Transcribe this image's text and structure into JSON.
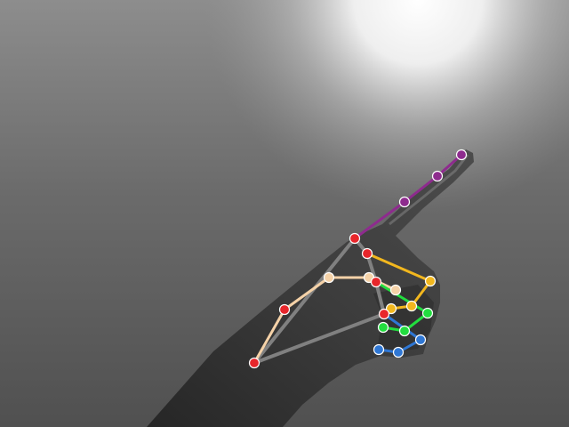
{
  "image": {
    "kind": "photo-with-overlay",
    "subject": "hand-pointing-up-right",
    "grayscale": true
  },
  "overlay": {
    "type": "hand-landmarks",
    "joint_color": "#e8262b",
    "landmark_count": 21,
    "finger_colors": {
      "palm": "#808080",
      "thumb": "#f5d2a8",
      "index": "#8e2b8e",
      "middle": "#f2b71e",
      "ring": "#22dd3f",
      "pinky": "#2f77d4"
    }
  }
}
